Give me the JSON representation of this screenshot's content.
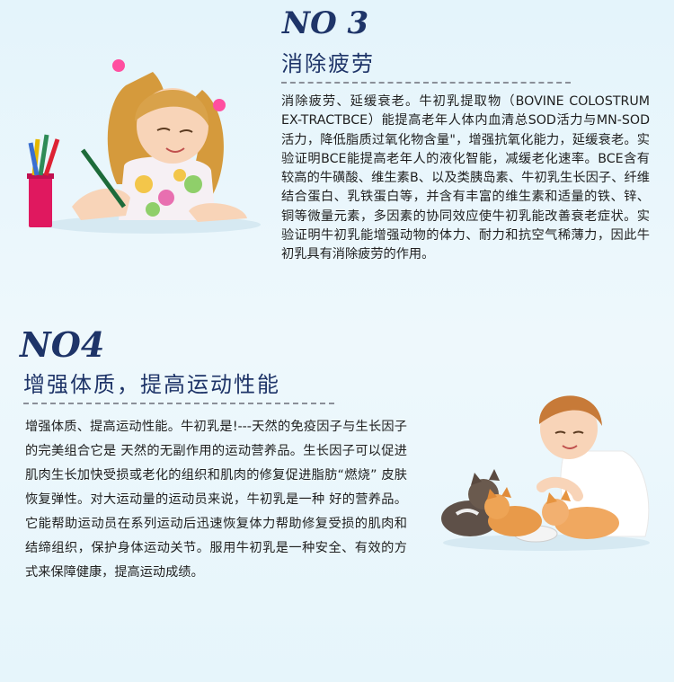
{
  "section3": {
    "number": "NO 3",
    "title": "消除疲劳",
    "body": "消除疲劳、延缓衰老。牛初乳提取物（BOVINE COLOSTRUM EX-TRACTBCE）能提高老年人体内血清总SOD活力与MN-SOD活力，降低脂质过氧化物含量\"，增强抗氧化能力，延缓衰老。实验证明BCE能提高老年人的液化智能，减缓老化速率。BCE含有较高的牛磺酸、维生素B、以及类胰岛素、牛初乳生长因子、纤维结合蛋白、乳铁蛋白等，并含有丰富的维生素和适量的铁、锌、铜等微量元素，多因素的协同效应使牛初乳能改善衰老症状。实验证明牛初乳能增强动物的体力、耐力和抗空气稀薄力，因此牛初乳具有消除疲劳的作用。"
  },
  "section4": {
    "number": "NO4",
    "title": "增强体质，提高运动性能",
    "body": "增强体质、提高运动性能。牛初乳是!---天然的免疫因子与生长因子的完美组合它是 天然的无副作用的运动营养品。生长因子可以促进肌肉生长加快受损或老化的组织和肌肉的修复促进脂肪“燃烧” 皮肤恢复弹性。对大运动量的运动员来说，牛初乳是一种 好的营养品。它能帮助运动员在系列运动后迅速恢复体力帮助修复受损的肌肉和结缔组织，保护身体运动关节。服用牛初乳是一种安全、有效的方式来保障健康，提高运动成绩。"
  },
  "colors": {
    "heading": "#1e3468",
    "background": "#e4f4fb"
  }
}
